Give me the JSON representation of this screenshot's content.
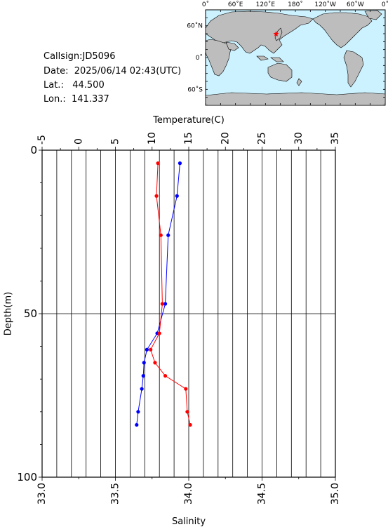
{
  "info": {
    "callsign_label": "Callsign:",
    "callsign": "JD5096",
    "date_label": "Date:",
    "date": "2025/06/14 02:43(UTC)",
    "lat_label": "Lat.:",
    "lat": "44.500",
    "lon_label": "Lon.:",
    "lon": "141.337"
  },
  "map": {
    "top_labels": [
      "0˚",
      "60˚E",
      "120˚E",
      "180˚",
      "120˚W",
      "60˚W",
      "0˚"
    ],
    "lat_labels": [
      "60˚N",
      "0˚",
      "60˚S"
    ],
    "marker_lat": 44.5,
    "marker_lon": 141.337,
    "ocean_color": "#ccf2ff",
    "land_color": "#bdbdbd",
    "marker_color": "#ff0000"
  },
  "chart_data": {
    "type": "line",
    "top_axis": {
      "label": "Temperature(C)",
      "range": [
        -5,
        35
      ],
      "ticks": [
        -5,
        0,
        5,
        10,
        15,
        20,
        25,
        30,
        35
      ],
      "tick_labels": [
        "-5",
        "0",
        "5",
        "10",
        "15",
        "20",
        "25",
        "30",
        "35"
      ]
    },
    "bottom_axis": {
      "label": "Salinity",
      "range": [
        33.0,
        35.0
      ],
      "ticks": [
        33.0,
        33.5,
        34.0,
        34.5,
        35.0
      ],
      "tick_labels": [
        "33.0",
        "33.5",
        "34.0",
        "34.5",
        "35.0"
      ]
    },
    "y_axis": {
      "label": "Depth(m)",
      "range": [
        0,
        100
      ],
      "inverted": true,
      "ticks": [
        0,
        50,
        100
      ],
      "tick_labels": [
        "0",
        "50",
        "100"
      ]
    },
    "grid": true,
    "series": [
      {
        "quantity": "temperature",
        "axis": "top",
        "color": "#0000ff",
        "points": [
          {
            "depth": 4,
            "value": 13.8
          },
          {
            "depth": 14,
            "value": 13.4
          },
          {
            "depth": 26,
            "value": 12.2
          },
          {
            "depth": 47,
            "value": 11.8
          },
          {
            "depth": 56,
            "value": 10.7
          },
          {
            "depth": 61,
            "value": 9.3
          },
          {
            "depth": 65,
            "value": 8.9
          },
          {
            "depth": 69,
            "value": 8.8
          },
          {
            "depth": 73,
            "value": 8.6
          },
          {
            "depth": 80,
            "value": 8.1
          },
          {
            "depth": 84,
            "value": 7.9
          }
        ]
      },
      {
        "quantity": "salinity",
        "axis": "bottom",
        "color": "#ff0000",
        "points": [
          {
            "depth": 4,
            "value": 33.79
          },
          {
            "depth": 14,
            "value": 33.78
          },
          {
            "depth": 26,
            "value": 33.81
          },
          {
            "depth": 47,
            "value": 33.82
          },
          {
            "depth": 56,
            "value": 33.8
          },
          {
            "depth": 61,
            "value": 33.74
          },
          {
            "depth": 65,
            "value": 33.77
          },
          {
            "depth": 69,
            "value": 33.84
          },
          {
            "depth": 73,
            "value": 33.98
          },
          {
            "depth": 80,
            "value": 33.99
          },
          {
            "depth": 84,
            "value": 34.01
          }
        ]
      }
    ]
  }
}
